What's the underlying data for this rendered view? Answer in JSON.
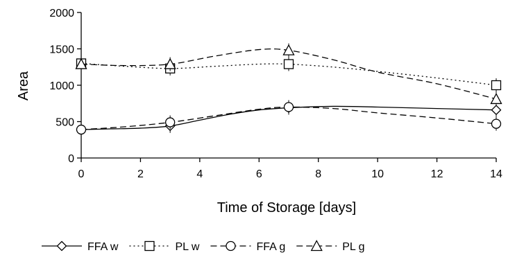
{
  "chart_data": {
    "type": "line",
    "title": "",
    "xlabel": "Time of Storage [days]",
    "ylabel": "Area",
    "xlim": [
      0,
      14
    ],
    "ylim": [
      0,
      2000
    ],
    "xticks": [
      "0",
      "2",
      "4",
      "6",
      "8",
      "10",
      "12",
      "14"
    ],
    "yticks": [
      "0",
      "500",
      "1000",
      "1500",
      "2000"
    ],
    "grid": false,
    "legend_position": "bottom",
    "series": [
      {
        "name": "FFA w",
        "marker": "diamond",
        "dash": "solid",
        "points": [
          [
            0,
            390
          ],
          [
            3,
            440
          ],
          [
            7,
            690
          ],
          [
            14,
            660
          ]
        ],
        "curve": [
          [
            0,
            390
          ],
          [
            1,
            400
          ],
          [
            2,
            410
          ],
          [
            3,
            440
          ],
          [
            4,
            520
          ],
          [
            5,
            600
          ],
          [
            6,
            660
          ],
          [
            7,
            690
          ],
          [
            8.5,
            710
          ],
          [
            10,
            700
          ],
          [
            12,
            680
          ],
          [
            14,
            660
          ]
        ]
      },
      {
        "name": "PL w",
        "marker": "square",
        "dash": "dotted",
        "points": [
          [
            0,
            1300
          ],
          [
            3,
            1230
          ],
          [
            7,
            1290
          ],
          [
            14,
            1000
          ]
        ],
        "curve": [
          [
            0,
            1300
          ],
          [
            1.5,
            1260
          ],
          [
            3,
            1230
          ],
          [
            4.5,
            1260
          ],
          [
            6,
            1290
          ],
          [
            7,
            1290
          ],
          [
            8.5,
            1250
          ],
          [
            10,
            1190
          ],
          [
            12,
            1100
          ],
          [
            14,
            1000
          ]
        ]
      },
      {
        "name": "FFA g",
        "marker": "circle",
        "dash": "dashed",
        "points": [
          [
            0,
            390
          ],
          [
            3,
            490
          ],
          [
            7,
            700
          ],
          [
            14,
            470
          ]
        ],
        "curve": [
          [
            0,
            390
          ],
          [
            1.5,
            430
          ],
          [
            3,
            490
          ],
          [
            4.5,
            580
          ],
          [
            6,
            670
          ],
          [
            7,
            700
          ],
          [
            8.5,
            680
          ],
          [
            10,
            620
          ],
          [
            12,
            550
          ],
          [
            14,
            470
          ]
        ]
      },
      {
        "name": "PL g",
        "marker": "triangle",
        "dash": "dashed",
        "points": [
          [
            0,
            1290
          ],
          [
            3,
            1290
          ],
          [
            7,
            1480
          ],
          [
            14,
            810
          ]
        ],
        "curve": [
          [
            0,
            1290
          ],
          [
            1.5,
            1270
          ],
          [
            3,
            1290
          ],
          [
            4.5,
            1400
          ],
          [
            6,
            1490
          ],
          [
            7,
            1480
          ],
          [
            8.5,
            1350
          ],
          [
            10,
            1180
          ],
          [
            12,
            1020
          ],
          [
            14,
            810
          ]
        ]
      }
    ]
  }
}
